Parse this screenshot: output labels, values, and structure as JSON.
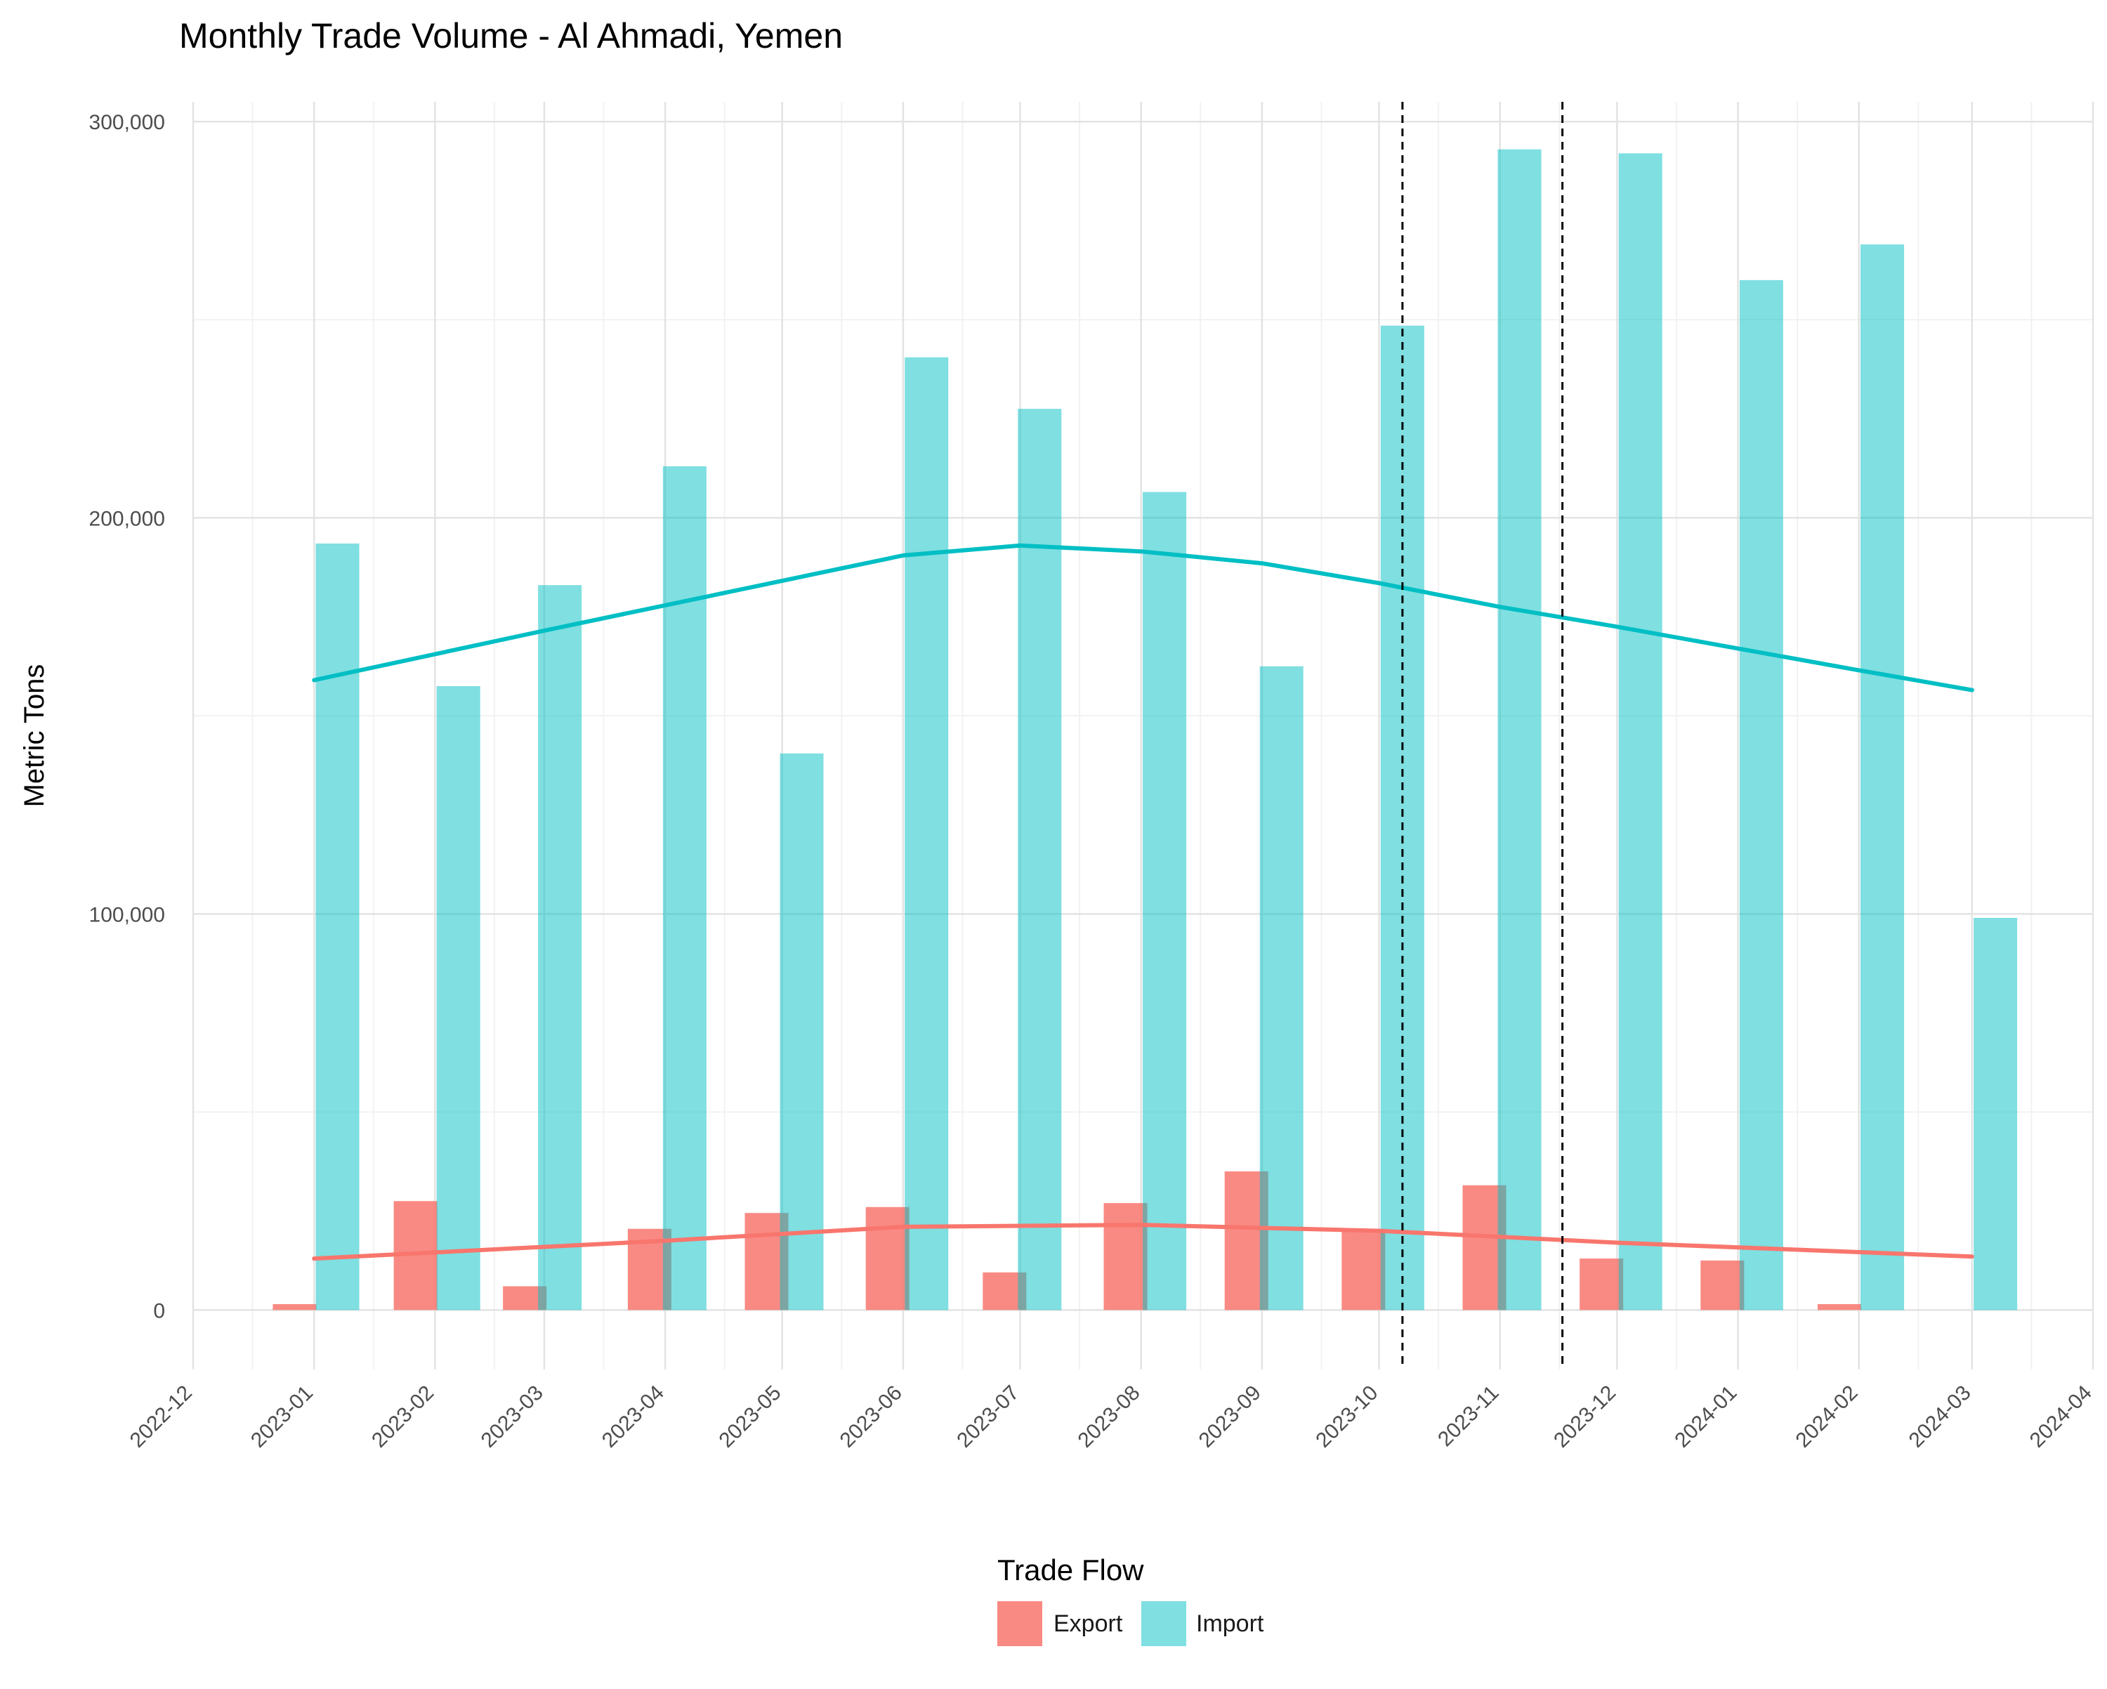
{
  "chart_data": {
    "type": "bar",
    "title": "Monthly Trade Volume - Al Ahmadi, Yemen",
    "xlabel": "",
    "ylabel": "Metric Tons",
    "ylim": [
      -15000,
      305000
    ],
    "yticks": [
      0,
      100000,
      200000,
      300000
    ],
    "ytick_labels": [
      "0",
      "100,000",
      "200,000",
      "300,000"
    ],
    "x_axis_labels": [
      "2022-12",
      "2023-01",
      "2023-02",
      "2023-03",
      "2023-04",
      "2023-05",
      "2023-06",
      "2023-07",
      "2023-08",
      "2023-09",
      "2023-10",
      "2023-11",
      "2023-12",
      "2024-01",
      "2024-02",
      "2024-03",
      "2024-04"
    ],
    "x_range": [
      "2022-12-01",
      "2024-04-01"
    ],
    "legend": {
      "title": "Trade Flow",
      "position": "bottom"
    },
    "series": [
      {
        "name": "Export",
        "color": "#F8766D",
        "bars": [
          {
            "date": "2022-12-27",
            "value": 1500
          },
          {
            "date": "2023-01-27",
            "value": 27500
          },
          {
            "date": "2023-02-24",
            "value": 6000
          },
          {
            "date": "2023-03-28",
            "value": 20500
          },
          {
            "date": "2023-04-27",
            "value": 24500
          },
          {
            "date": "2023-05-28",
            "value": 26000
          },
          {
            "date": "2023-06-27",
            "value": 9500
          },
          {
            "date": "2023-07-28",
            "value": 27000
          },
          {
            "date": "2023-08-28",
            "value": 35000
          },
          {
            "date": "2023-09-27",
            "value": 20500
          },
          {
            "date": "2023-10-28",
            "value": 31500
          },
          {
            "date": "2023-11-27",
            "value": 13000
          },
          {
            "date": "2023-12-28",
            "value": 12500
          },
          {
            "date": "2024-01-27",
            "value": 1500
          }
        ],
        "trend": [
          {
            "date": "2023-01-01",
            "value": 13000
          },
          {
            "date": "2023-04-01",
            "value": 17500
          },
          {
            "date": "2023-06-01",
            "value": 21000
          },
          {
            "date": "2023-08-01",
            "value": 21500
          },
          {
            "date": "2023-10-01",
            "value": 20000
          },
          {
            "date": "2023-12-01",
            "value": 17000
          },
          {
            "date": "2024-03-01",
            "value": 13500
          }
        ]
      },
      {
        "name": "Import",
        "color": "#00BFC4",
        "bars": [
          {
            "date": "2023-01-07",
            "value": 193500
          },
          {
            "date": "2023-02-07",
            "value": 157500
          },
          {
            "date": "2023-03-05",
            "value": 183000
          },
          {
            "date": "2023-04-06",
            "value": 213000
          },
          {
            "date": "2023-05-06",
            "value": 140500
          },
          {
            "date": "2023-06-07",
            "value": 240500
          },
          {
            "date": "2023-07-06",
            "value": 227500
          },
          {
            "date": "2023-08-07",
            "value": 206500
          },
          {
            "date": "2023-09-06",
            "value": 162500
          },
          {
            "date": "2023-10-07",
            "value": 248500
          },
          {
            "date": "2023-11-06",
            "value": 293000
          },
          {
            "date": "2023-12-07",
            "value": 292000
          },
          {
            "date": "2024-01-07",
            "value": 260000
          },
          {
            "date": "2024-02-07",
            "value": 269000
          },
          {
            "date": "2024-03-07",
            "value": 99000
          }
        ],
        "trend": [
          {
            "date": "2023-01-01",
            "value": 159000
          },
          {
            "date": "2023-03-01",
            "value": 171500
          },
          {
            "date": "2023-06-01",
            "value": 190500
          },
          {
            "date": "2023-07-01",
            "value": 193000
          },
          {
            "date": "2023-08-01",
            "value": 191500
          },
          {
            "date": "2023-09-01",
            "value": 188500
          },
          {
            "date": "2023-10-01",
            "value": 183500
          },
          {
            "date": "2023-11-01",
            "value": 177500
          },
          {
            "date": "2023-12-01",
            "value": 172500
          },
          {
            "date": "2024-01-01",
            "value": 167000
          },
          {
            "date": "2024-02-01",
            "value": 161500
          },
          {
            "date": "2024-03-01",
            "value": 156500
          }
        ]
      }
    ],
    "vlines": [
      {
        "date": "2023-10-07",
        "style": "dashed"
      },
      {
        "date": "2023-11-17",
        "style": "dashed"
      }
    ]
  }
}
